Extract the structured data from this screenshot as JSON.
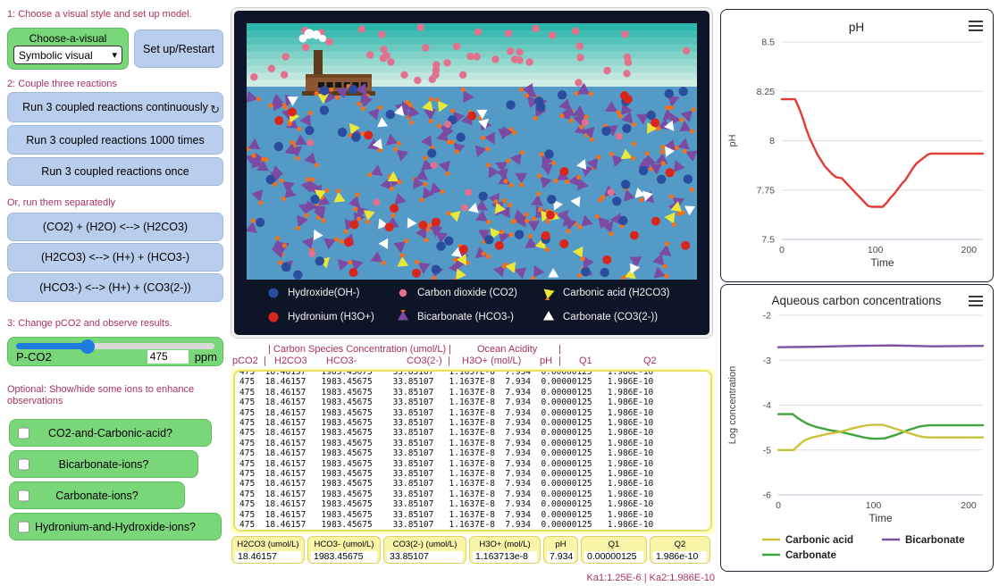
{
  "notes": {
    "step1": "1: Choose a visual style and set up model.",
    "step2": "2: Couple three reactions",
    "separate": "Or, run them separatedly",
    "step3": "3: Change pCO2 and observe results.",
    "optional": "Optional:  Show/hide some ions to enhance observations",
    "ka": "Ka1:1.25E-6 | Ka2:1.986E-10"
  },
  "controls": {
    "chooser": {
      "label": "Choose-a-visual",
      "value": "Symbolic visual"
    },
    "setup_label": "Set up/Restart",
    "run_buttons": [
      "Run 3 coupled reactions continuously",
      "Run 3 coupled reactions 1000 times",
      "Run 3 coupled reactions once"
    ],
    "forever_icon": "↻",
    "reaction_buttons": [
      "(CO2) + (H2O) <--> (H2CO3)",
      "(H2CO3) <--> (H+) + (HCO3-)",
      "(HCO3-) <--> (H+) + (CO3(2-))"
    ],
    "slider": {
      "label": "P-CO2",
      "value": "475",
      "unit": "ppm",
      "fraction": 0.36
    },
    "toggles": [
      "CO2-and-Carbonic-acid?",
      "Bicarbonate-ions?",
      "Carbonate-ions?",
      "Hydronium-and-Hydroxide-ions?"
    ]
  },
  "sim": {
    "legend": [
      {
        "label": "Hydroxide(OH-)",
        "shape": "circle",
        "color": "#2a4d9e",
        "icon": "hydroxide-icon",
        "r": 5.5
      },
      {
        "label": "Carbon dioxide (CO2)",
        "shape": "circle",
        "color": "#e2718f",
        "icon": "carbon-dioxide-icon",
        "r": 4.2
      },
      {
        "label": "Carbonic acid (H2CO3)",
        "shape": "triangle-dot",
        "color": "#eae73b",
        "icon": "carbonic-acid-icon",
        "rot": 100
      },
      {
        "label": "Hydronium (H3O+)",
        "shape": "circle",
        "color": "#da251d",
        "icon": "hydronium-icon",
        "r": 5.5
      },
      {
        "label": "Bicarbonate (HCO3-)",
        "shape": "triangle-dot",
        "color": "#7b4aa2",
        "icon": "bicarbonate-icon",
        "rot": -90
      },
      {
        "label": "Carbonate (CO3(2-))",
        "shape": "triangle",
        "color": "#ffffff",
        "icon": "carbonate-icon",
        "rot": -90
      }
    ],
    "scene": {
      "water_color": "#539bc6",
      "sky_colors": [
        "#2db5ab",
        "#41bcb2",
        "#56c3b9",
        "#6bcac0",
        "#80d1c7",
        "#95d8ce",
        "#aadfd6",
        "#bfe6dd",
        "#d0ece5"
      ],
      "pink": "#e2718f",
      "orange": "#f2711c",
      "purple": "#7b4aa2",
      "yellow": "#eae73b",
      "white": "#ffffff",
      "blue": "#2a4d9e",
      "red": "#da251d",
      "counts": {
        "sky_co2": 48,
        "bicarbonate": 180,
        "hydroxide": 44,
        "hydronium": 26,
        "carbonic": 26,
        "carbonate": 22,
        "water_co2": 10,
        "orange_dots": 8
      }
    }
  },
  "table": {
    "header1": [
      "| Carbon Species Concentration (umol/L) |",
      "Ocean Acidity",
      "|"
    ],
    "header2": [
      "pCO2",
      "|",
      "H2CO3",
      "HCO3-",
      "CO3(2-)",
      "|",
      "H3O+ (mol/L)",
      "pH",
      "|",
      "Q1",
      "Q2"
    ],
    "row": "475  18.46157   1983.45675    33.85107   1.1637E-8  7.934  0.00000125   1.986E-10",
    "rows_visible": 17
  },
  "monitors": [
    {
      "label": "H2CO3 (umol/L)",
      "value": "18.46157"
    },
    {
      "label": "HCO3- (umol/L)",
      "value": "1983.45675"
    },
    {
      "label": "CO3(2-) (umol/L)",
      "value": "33.85107"
    },
    {
      "label": "H3O+ (mol/L)",
      "value": "1.163713e-8"
    },
    {
      "label": "pH",
      "value": "7.934"
    },
    {
      "label": "Q1",
      "value": "0.00000125"
    },
    {
      "label": "Q2",
      "value": "1.986e-10"
    }
  ],
  "chart_data": [
    {
      "type": "line",
      "title": "pH",
      "xlabel": "Time",
      "ylabel": "pH",
      "xlim": [
        0,
        215
      ],
      "ylim": [
        7.5,
        8.5
      ],
      "xticks": [
        0,
        100,
        200
      ],
      "yticks": [
        7.5,
        7.75,
        8,
        8.25,
        8.5
      ],
      "grid": true,
      "legend": false,
      "series": [
        {
          "name": "pH",
          "color": "#e23b32",
          "x": [
            0,
            14,
            18,
            22,
            26,
            30,
            34,
            38,
            42,
            46,
            50,
            54,
            58,
            64,
            68,
            72,
            76,
            80,
            84,
            88,
            92,
            96,
            108,
            112,
            116,
            120,
            124,
            128,
            132,
            136,
            140,
            144,
            148,
            152,
            156,
            160,
            215
          ],
          "y": [
            8.21,
            8.21,
            8.17,
            8.12,
            8.06,
            8.01,
            7.97,
            7.93,
            7.9,
            7.87,
            7.85,
            7.83,
            7.815,
            7.81,
            7.79,
            7.77,
            7.75,
            7.73,
            7.71,
            7.69,
            7.67,
            7.665,
            7.665,
            7.685,
            7.71,
            7.73,
            7.755,
            7.78,
            7.8,
            7.83,
            7.86,
            7.885,
            7.9,
            7.915,
            7.93,
            7.935,
            7.935
          ]
        }
      ]
    },
    {
      "type": "line",
      "title": "Aqueous carbon concentrations",
      "xlabel": "Time",
      "ylabel": "Log concentration",
      "xlim": [
        0,
        215
      ],
      "ylim": [
        -6,
        -2
      ],
      "xticks": [
        0,
        100,
        200
      ],
      "yticks": [
        -6,
        -5,
        -4,
        -3,
        -2
      ],
      "grid": true,
      "legend": true,
      "legend_order": [
        2,
        0,
        1
      ],
      "series": [
        {
          "name": "Bicarbonate",
          "color": "#7a52a5",
          "x": [
            0,
            40,
            80,
            120,
            160,
            215
          ],
          "y": [
            -2.71,
            -2.7,
            -2.68,
            -2.67,
            -2.69,
            -2.68
          ]
        },
        {
          "name": "Carbonate",
          "color": "#3fa33c",
          "x": [
            0,
            15,
            20,
            25,
            30,
            36,
            42,
            48,
            54,
            60,
            66,
            72,
            78,
            84,
            90,
            96,
            102,
            112,
            118,
            124,
            130,
            136,
            142,
            148,
            154,
            160,
            215
          ],
          "y": [
            -4.2,
            -4.2,
            -4.28,
            -4.35,
            -4.41,
            -4.46,
            -4.5,
            -4.53,
            -4.56,
            -4.58,
            -4.6,
            -4.63,
            -4.66,
            -4.69,
            -4.72,
            -4.74,
            -4.75,
            -4.74,
            -4.7,
            -4.66,
            -4.61,
            -4.56,
            -4.52,
            -4.48,
            -4.46,
            -4.45,
            -4.45
          ]
        },
        {
          "name": "Carbonic acid",
          "color": "#c9c23a",
          "x": [
            0,
            16,
            20,
            24,
            28,
            34,
            40,
            46,
            52,
            58,
            64,
            70,
            76,
            82,
            88,
            94,
            100,
            110,
            116,
            122,
            128,
            134,
            140,
            146,
            152,
            158,
            215
          ],
          "y": [
            -5,
            -5,
            -4.92,
            -4.84,
            -4.78,
            -4.73,
            -4.7,
            -4.67,
            -4.64,
            -4.62,
            -4.6,
            -4.57,
            -4.53,
            -4.5,
            -4.47,
            -4.45,
            -4.44,
            -4.44,
            -4.48,
            -4.52,
            -4.56,
            -4.6,
            -4.64,
            -4.68,
            -4.71,
            -4.72,
            -4.72
          ]
        }
      ]
    }
  ]
}
